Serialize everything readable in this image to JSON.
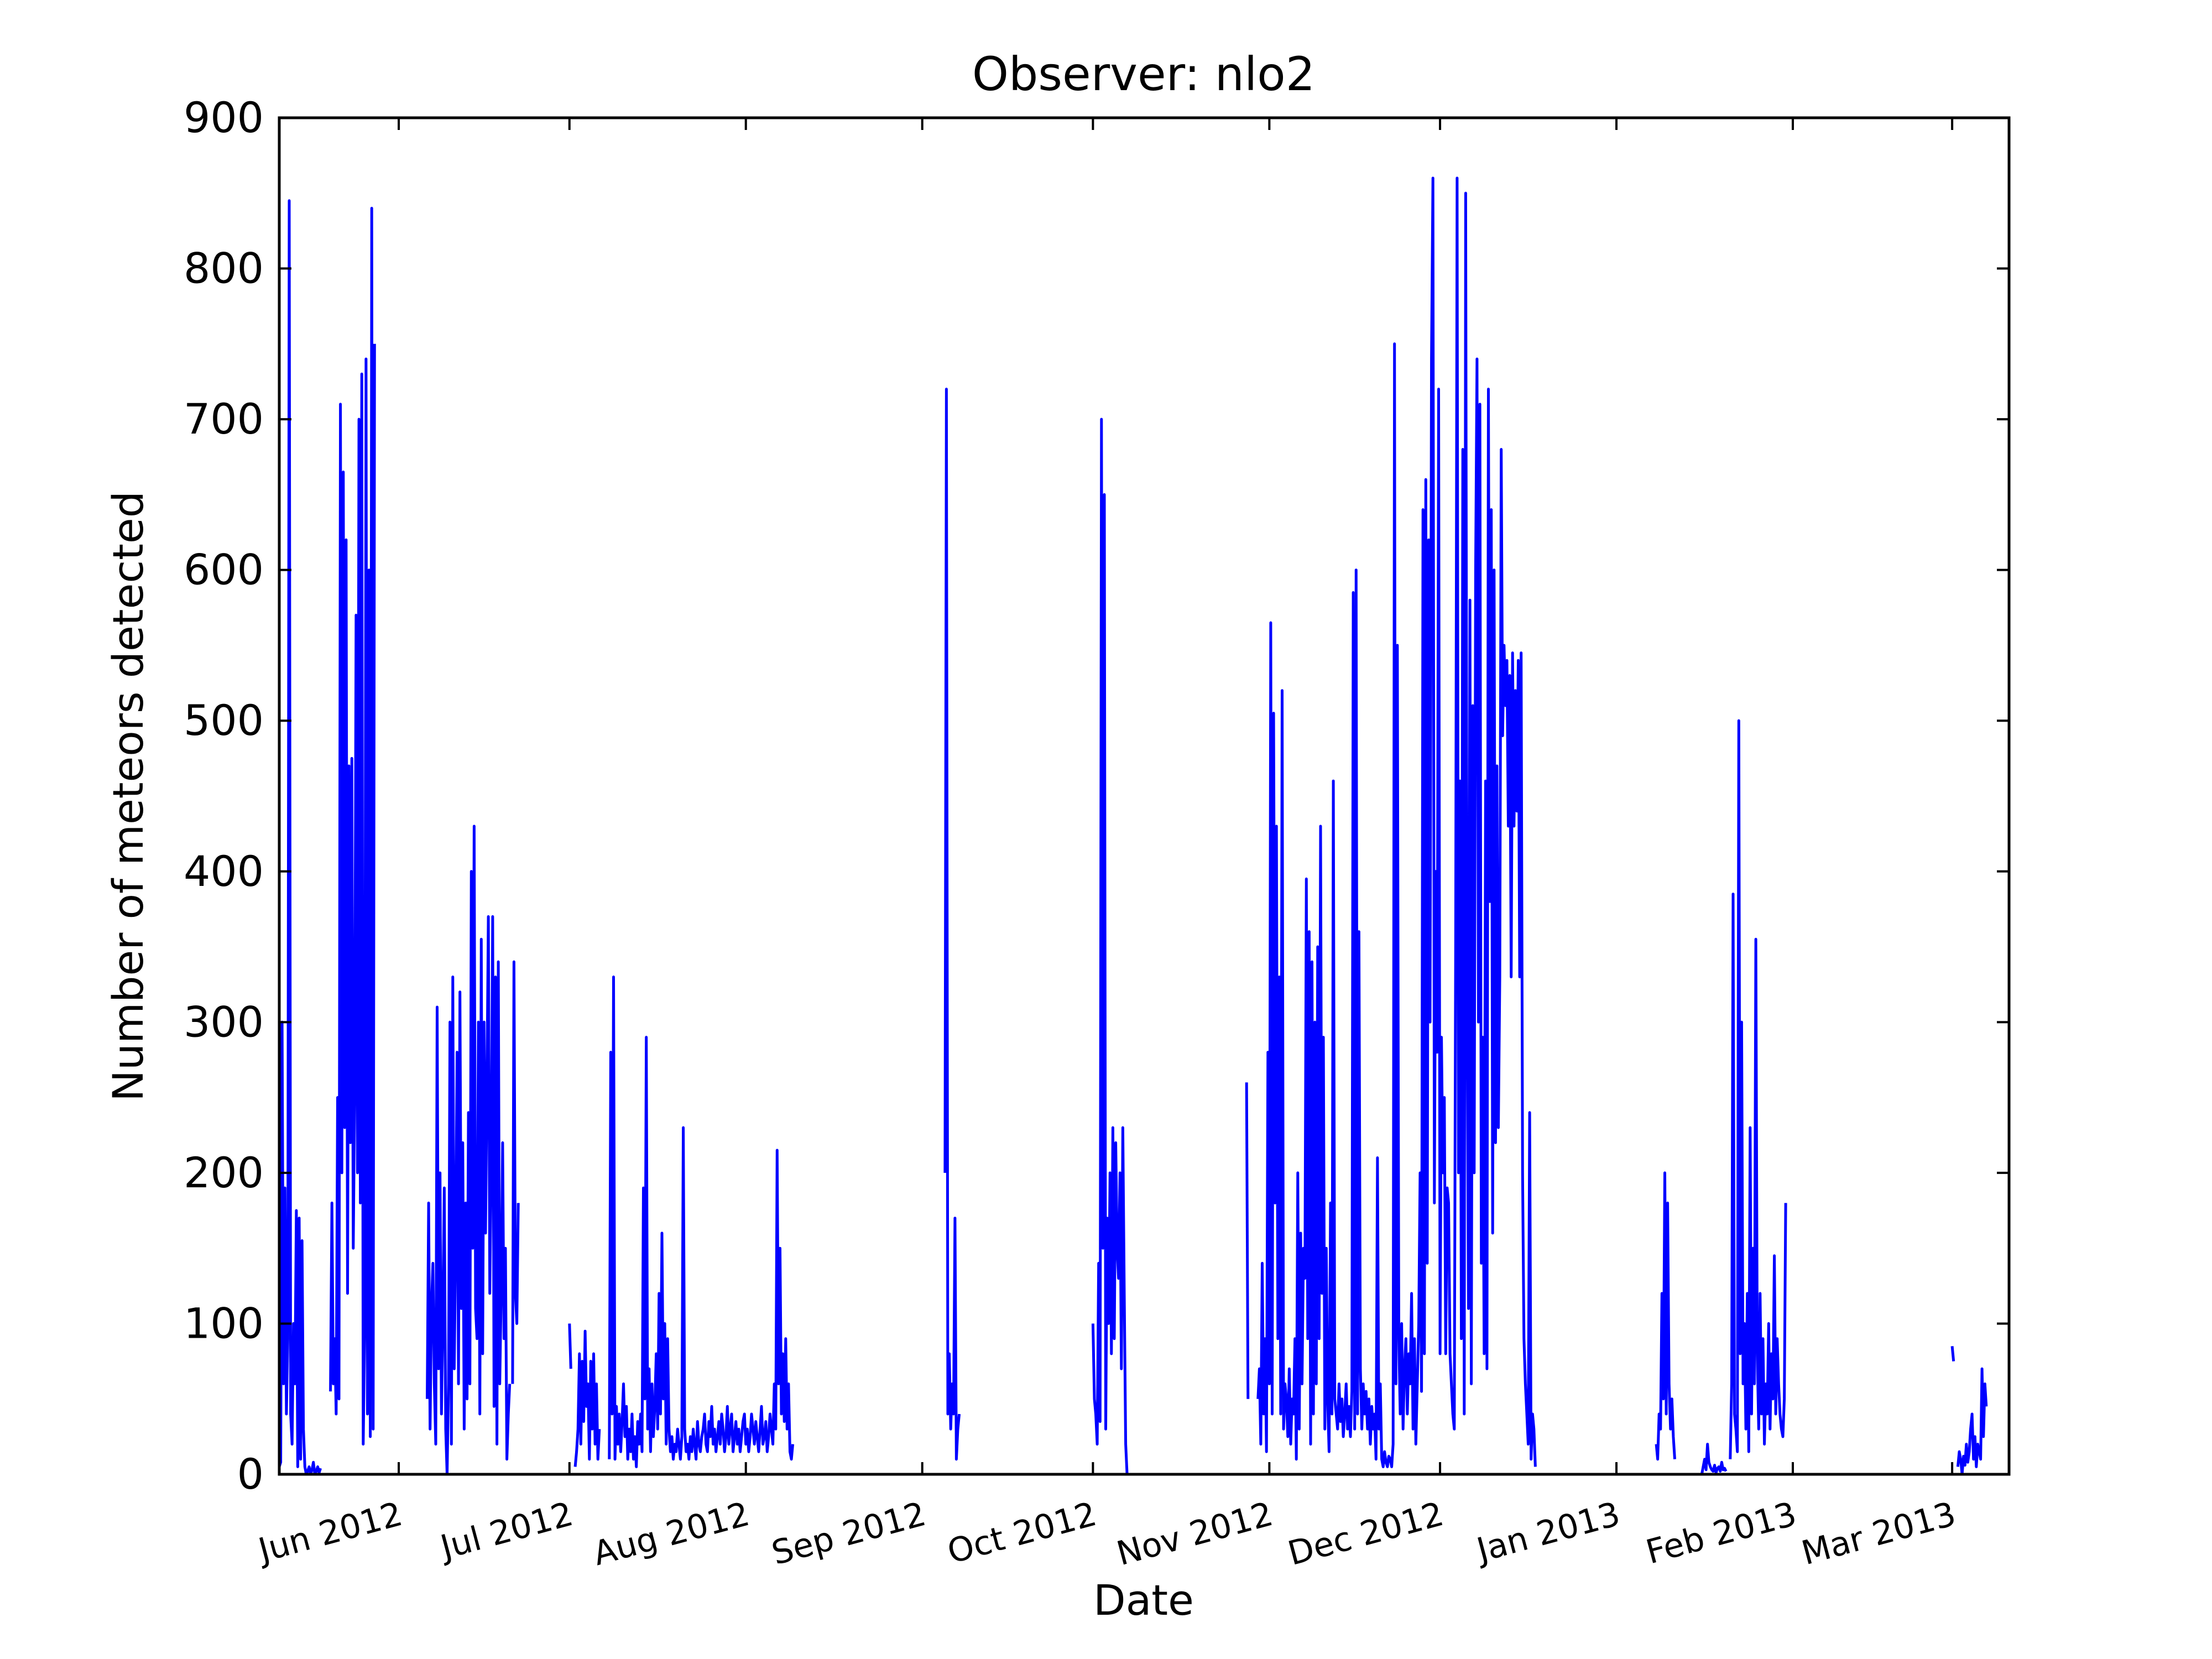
{
  "chart_data": {
    "type": "line",
    "title": "Observer: nlo2",
    "xlabel": "Date",
    "ylabel": "Number of meteors detected",
    "ylim": [
      0,
      900
    ],
    "xlim": [
      "2012-05-11",
      "2013-03-11"
    ],
    "yticks": [
      0,
      100,
      200,
      300,
      400,
      500,
      600,
      700,
      800,
      900
    ],
    "xticks": [
      {
        "date": "2012-06-01",
        "label": "Jun 2012"
      },
      {
        "date": "2012-07-01",
        "label": "Jul 2012"
      },
      {
        "date": "2012-08-01",
        "label": "Aug 2012"
      },
      {
        "date": "2012-09-01",
        "label": "Sep 2012"
      },
      {
        "date": "2012-10-01",
        "label": "Oct 2012"
      },
      {
        "date": "2012-11-01",
        "label": "Nov 2012"
      },
      {
        "date": "2012-12-01",
        "label": "Dec 2012"
      },
      {
        "date": "2013-01-01",
        "label": "Jan 2013"
      },
      {
        "date": "2013-02-01",
        "label": "Feb 2013"
      },
      {
        "date": "2013-03-01",
        "label": "Mar 2013"
      }
    ],
    "grid": false,
    "legend": "none",
    "series_color": "#0000ff",
    "segments": [
      {
        "start": "2012-05-11T00:00",
        "step_hours": 6,
        "values": [
          5,
          8,
          300,
          60,
          190,
          40,
          90,
          845,
          40,
          20,
          100,
          60,
          175,
          5,
          170,
          10,
          155,
          30,
          5,
          0,
          2,
          5,
          0,
          3,
          8,
          0,
          2,
          5,
          1,
          4
        ]
      },
      {
        "start": "2012-05-20T00:00",
        "step_hours": 6,
        "values": [
          55,
          180,
          60,
          90,
          40,
          250,
          50,
          710,
          200,
          665,
          230,
          620,
          120,
          470,
          220,
          475,
          150,
          250,
          570,
          200,
          700,
          180,
          730,
          20,
          90,
          740,
          40,
          600,
          25,
          840,
          30,
          750
        ]
      },
      {
        "start": "2012-06-06T00:00",
        "step_hours": 6,
        "values": [
          50,
          180,
          30,
          110,
          140,
          60,
          20,
          310,
          70,
          200,
          40,
          100,
          190,
          30,
          0,
          60,
          300,
          20,
          330,
          70,
          150,
          280,
          60,
          320,
          110,
          220,
          30,
          180,
          50,
          240,
          60,
          400,
          150,
          430,
          110,
          90,
          300,
          40,
          355,
          80,
          300,
          160,
          260,
          370,
          120,
          210,
          370,
          45,
          330,
          20,
          340,
          60,
          120,
          220,
          90,
          150,
          10,
          40,
          60
        ]
      },
      {
        "start": "2012-06-21T00:00",
        "step_hours": 6,
        "values": [
          60,
          340,
          120,
          100,
          180
        ]
      },
      {
        "start": "2012-07-01T00:00",
        "step_hours": 6,
        "values": [
          100,
          70
        ]
      },
      {
        "start": "2012-07-02T00:00",
        "step_hours": 6,
        "values": [
          5,
          15,
          30,
          80,
          20,
          75,
          35,
          95,
          45,
          60,
          10,
          75,
          30,
          80,
          20,
          60,
          10,
          30
        ]
      },
      {
        "start": "2012-07-08T00:00",
        "step_hours": 6,
        "values": [
          10,
          280,
          40,
          330,
          10,
          45,
          20,
          40,
          15,
          35,
          60,
          25,
          45,
          10,
          30,
          15,
          40,
          10,
          25,
          5,
          35,
          20,
          40,
          15,
          190,
          50,
          290,
          30,
          70,
          15,
          60,
          25,
          45,
          80,
          30,
          120,
          40,
          160,
          50,
          100,
          20,
          90,
          30,
          15,
          25,
          10,
          20,
          15,
          30,
          20,
          10,
          25,
          230,
          30,
          15,
          20,
          10,
          25,
          15,
          30,
          20,
          10,
          35,
          20,
          15,
          25,
          30,
          40,
          20,
          15,
          35,
          25,
          45,
          20,
          30,
          15,
          25,
          35,
          20,
          40,
          30,
          15,
          25,
          45,
          20,
          30,
          40,
          15,
          25,
          35,
          20,
          30,
          15,
          25,
          35,
          40,
          20,
          30,
          15,
          25,
          40,
          30,
          20,
          35,
          25,
          15,
          30,
          45,
          20,
          25,
          35,
          15,
          25,
          40,
          30,
          20,
          60,
          30,
          215,
          60,
          150,
          40,
          80,
          35,
          90,
          30,
          60,
          15,
          10,
          20
        ]
      },
      {
        "start": "2012-09-05T00:00",
        "step_hours": 6,
        "values": [
          200,
          720,
          40,
          80,
          30,
          60,
          40,
          170,
          10,
          30,
          40
        ]
      },
      {
        "start": "2012-10-01T00:00",
        "step_hours": 6,
        "values": [
          100,
          50,
          40,
          20,
          140,
          35,
          700,
          150,
          650,
          30,
          170,
          100,
          200,
          80,
          230,
          90,
          220,
          150,
          130,
          200,
          70,
          230,
          120,
          20,
          0
        ]
      },
      {
        "start": "2012-10-28T00:00",
        "step_hours": 6,
        "values": [
          260,
          50
        ]
      },
      {
        "start": "2012-10-30T00:00",
        "step_hours": 6,
        "values": [
          50,
          70,
          20,
          140,
          40,
          90,
          15,
          280,
          60,
          565,
          40,
          505,
          180,
          430,
          90,
          330,
          40,
          520,
          30,
          60,
          50,
          25,
          70,
          20,
          50,
          40,
          90,
          10,
          200,
          30,
          160,
          60,
          150,
          130,
          395,
          90,
          360,
          20,
          340,
          40,
          300,
          60,
          350,
          90,
          430,
          120,
          290,
          30,
          150,
          50,
          15,
          180,
          40,
          460,
          50,
          40,
          30,
          60,
          35,
          50,
          25,
          40,
          60,
          30,
          45,
          25,
          55,
          585,
          30,
          600,
          40,
          360,
          70,
          30,
          60,
          40,
          55,
          30,
          50,
          20,
          45,
          30,
          40,
          10,
          210,
          30,
          60,
          10,
          5,
          15,
          8,
          5,
          12,
          10,
          5,
          20,
          750,
          60,
          550,
          90,
          40,
          100,
          30,
          70,
          90,
          40,
          80,
          60,
          120,
          30,
          90,
          20,
          60,
          100,
          200,
          55,
          640,
          80,
          660,
          140,
          620,
          300,
          740,
          860,
          180,
          400,
          280,
          720,
          80,
          290,
          200,
          250,
          80,
          190,
          180,
          80,
          60,
          40,
          30,
          355,
          860,
          200,
          460,
          90,
          680,
          40,
          850,
          310,
          110,
          580,
          60,
          510,
          200,
          600,
          740,
          300,
          710,
          140,
          290,
          80,
          460,
          70,
          720,
          380,
          640,
          160,
          600,
          220,
          470,
          230,
          330,
          680,
          490,
          550,
          510,
          540,
          430,
          530,
          330,
          545,
          430,
          520,
          440,
          540,
          330,
          545,
          200,
          90,
          60,
          40,
          20,
          240,
          10,
          40,
          30,
          5
        ]
      },
      {
        "start": "2013-01-08T00:00",
        "step_hours": 6,
        "values": [
          20,
          10,
          40,
          30,
          120,
          50,
          200,
          40,
          180,
          60,
          30,
          50,
          25,
          10
        ]
      },
      {
        "start": "2013-01-16T00:00",
        "step_hours": 6,
        "values": [
          0,
          5,
          10,
          3,
          20,
          8,
          5,
          3,
          2,
          6,
          1,
          4,
          5,
          2,
          8,
          3,
          4,
          2
        ]
      },
      {
        "start": "2013-01-21T00:00",
        "step_hours": 6,
        "values": [
          10,
          60,
          385,
          40,
          30,
          15,
          500,
          80,
          300,
          60,
          100,
          30,
          120,
          15,
          230,
          40,
          150,
          60,
          355,
          80,
          30,
          120,
          40,
          90,
          20,
          60,
          40,
          100,
          30,
          80,
          50,
          145,
          40,
          90,
          60,
          40,
          30,
          25,
          50,
          180
        ]
      },
      {
        "start": "2013-03-01T00:00",
        "step_hours": 6,
        "values": [
          85,
          75
        ]
      },
      {
        "start": "2013-03-02T00:00",
        "step_hours": 6,
        "values": [
          5,
          15,
          10,
          0,
          12,
          6,
          20,
          8,
          15,
          30,
          40,
          10,
          25,
          5,
          20,
          15,
          10,
          70,
          25,
          60,
          45
        ]
      }
    ]
  }
}
